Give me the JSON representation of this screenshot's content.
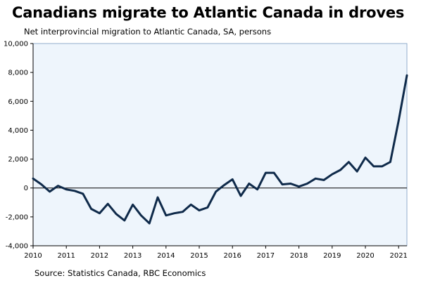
{
  "title": "Canadians migrate to Atlantic Canada in droves",
  "subtitle": "Net interprovincial migration to Atlantic Canada, SA, persons",
  "source": "Source: Statistics Canada, RBC Economics",
  "colors": {
    "line": "#0f2a4a",
    "plot_bg": "#eef5fc",
    "axis": "#000000"
  },
  "chart_data": {
    "type": "line",
    "title": "Canadians migrate to Atlantic Canada in droves",
    "subtitle": "Net interprovincial migration to Atlantic Canada, SA, persons",
    "xlabel": "",
    "ylabel": "",
    "xlim": [
      2010,
      2021.25
    ],
    "ylim": [
      -4000,
      10000
    ],
    "y_ticks": [
      -4000,
      -2000,
      0,
      2000,
      4000,
      6000,
      8000,
      10000
    ],
    "y_tick_labels": [
      "-4,000",
      "-2,000",
      "0",
      "2,000",
      "4,000",
      "6,000",
      "8,000",
      "10,000"
    ],
    "x_ticks": [
      2010,
      2011,
      2012,
      2013,
      2014,
      2015,
      2016,
      2017,
      2018,
      2019,
      2020,
      2021
    ],
    "x_tick_labels": [
      "2010",
      "2011",
      "2012",
      "2013",
      "2014",
      "2015",
      "2016",
      "2017",
      "2018",
      "2019",
      "2020",
      "2021"
    ],
    "grid": false,
    "legend": "none",
    "series": [
      {
        "x": [
          2010.0,
          2010.25,
          2010.5,
          2010.75,
          2011.0,
          2011.25,
          2011.5,
          2011.75,
          2012.0,
          2012.25,
          2012.5,
          2012.75,
          2013.0,
          2013.25,
          2013.5,
          2013.75,
          2014.0,
          2014.25,
          2014.5,
          2014.75,
          2015.0,
          2015.25,
          2015.5,
          2015.75,
          2016.0,
          2016.25,
          2016.5,
          2016.75,
          2017.0,
          2017.25,
          2017.5,
          2017.75,
          2018.0,
          2018.25,
          2018.5,
          2018.75,
          2019.0,
          2019.25,
          2019.5,
          2019.75,
          2020.0,
          2020.25,
          2020.5,
          2020.75,
          2021.0,
          2021.25
        ],
        "values": [
          650,
          250,
          -250,
          150,
          -100,
          -200,
          -400,
          -1450,
          -1750,
          -1100,
          -1800,
          -2250,
          -1150,
          -1900,
          -2450,
          -650,
          -1900,
          -1750,
          -1650,
          -1150,
          -1550,
          -1350,
          -250,
          200,
          600,
          -550,
          300,
          -100,
          1050,
          1050,
          250,
          300,
          100,
          300,
          650,
          550,
          950,
          1250,
          1800,
          1150,
          2100,
          1500,
          1500,
          1800,
          4650,
          7800
        ]
      }
    ]
  }
}
